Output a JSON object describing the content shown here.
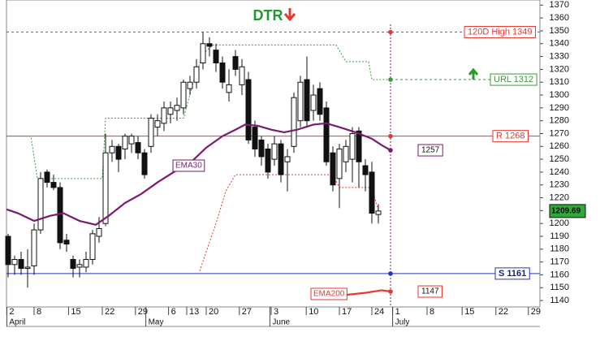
{
  "chart_data": {
    "type": "candlestick",
    "title": "DTR",
    "x": [
      0,
      1,
      2,
      3,
      4,
      5,
      6,
      7,
      8,
      9,
      10,
      11,
      12,
      13,
      14,
      15,
      16,
      17,
      18,
      19,
      20,
      21,
      22,
      23,
      24,
      25,
      26,
      27,
      28,
      29,
      30,
      31,
      32,
      33,
      34,
      35,
      36,
      37,
      38,
      39,
      40,
      41,
      42,
      43,
      44,
      45,
      46,
      47,
      48,
      49,
      50,
      51,
      52,
      53,
      54,
      55,
      56,
      57
    ],
    "open": [
      1190,
      1168,
      1172,
      1165,
      1167,
      1195,
      1240,
      1232,
      1228,
      1187,
      1172,
      1166,
      1166,
      1172,
      1190,
      1200,
      1255,
      1260,
      1258,
      1262,
      1263,
      1255,
      1260,
      1275,
      1278,
      1285,
      1288,
      1290,
      1305,
      1310,
      1325,
      1340,
      1335,
      1325,
      1302,
      1330,
      1308,
      1312,
      1275,
      1265,
      1258,
      1250,
      1262,
      1248,
      1260,
      1280,
      1312,
      1288,
      1305,
      1290,
      1255,
      1235,
      1248,
      1250,
      1272,
      1245,
      1240,
      1207
    ],
    "high": [
      1192,
      1175,
      1178,
      1180,
      1200,
      1240,
      1242,
      1238,
      1232,
      1192,
      1175,
      1172,
      1178,
      1195,
      1205,
      1270,
      1265,
      1262,
      1270,
      1270,
      1268,
      1258,
      1285,
      1285,
      1295,
      1295,
      1298,
      1312,
      1315,
      1328,
      1349,
      1345,
      1340,
      1330,
      1320,
      1335,
      1328,
      1318,
      1280,
      1268,
      1262,
      1268,
      1265,
      1258,
      1302,
      1315,
      1330,
      1308,
      1310,
      1295,
      1260,
      1262,
      1265,
      1275,
      1275,
      1250,
      1248,
      1215
    ],
    "low": [
      1158,
      1160,
      1160,
      1150,
      1160,
      1192,
      1228,
      1226,
      1180,
      1178,
      1158,
      1158,
      1162,
      1168,
      1185,
      1198,
      1248,
      1240,
      1250,
      1255,
      1250,
      1235,
      1255,
      1268,
      1272,
      1278,
      1280,
      1285,
      1300,
      1305,
      1320,
      1330,
      1318,
      1305,
      1295,
      1315,
      1300,
      1262,
      1252,
      1245,
      1235,
      1245,
      1232,
      1225,
      1255,
      1275,
      1275,
      1280,
      1280,
      1245,
      1225,
      1212,
      1240,
      1232,
      1228,
      1225,
      1200,
      1200
    ],
    "close": [
      1168,
      1172,
      1165,
      1166,
      1195,
      1235,
      1232,
      1228,
      1185,
      1184,
      1165,
      1168,
      1172,
      1192,
      1196,
      1255,
      1260,
      1250,
      1268,
      1268,
      1255,
      1238,
      1282,
      1280,
      1290,
      1290,
      1292,
      1310,
      1310,
      1322,
      1340,
      1338,
      1325,
      1310,
      1308,
      1320,
      1322,
      1265,
      1258,
      1252,
      1240,
      1262,
      1238,
      1252,
      1298,
      1310,
      1280,
      1300,
      1285,
      1248,
      1230,
      1258,
      1260,
      1270,
      1248,
      1238,
      1208,
      1209.69
    ],
    "last_price": 1209.69,
    "xlim": [
      -0.25,
      81.875
    ],
    "ylim": [
      1135,
      1374
    ],
    "yticks": [
      1140,
      1150,
      1160,
      1170,
      1180,
      1190,
      1200,
      1210,
      1220,
      1230,
      1240,
      1250,
      1260,
      1270,
      1280,
      1290,
      1300,
      1310,
      1320,
      1330,
      1340,
      1350,
      1360,
      1370
    ],
    "xticks": [
      {
        "value": -0.2,
        "label": "2"
      },
      {
        "value": 4,
        "label": "8"
      },
      {
        "value": 9.3,
        "label": "15"
      },
      {
        "value": 14.5,
        "label": "22"
      },
      {
        "value": 19.6,
        "label": "29"
      },
      {
        "value": 24.7,
        "label": "6"
      },
      {
        "value": 27.5,
        "label": "13"
      },
      {
        "value": 30.5,
        "label": "20"
      },
      {
        "value": 35.6,
        "label": "27"
      },
      {
        "value": 40.5,
        "label": "3"
      },
      {
        "value": 45.9,
        "label": "10"
      },
      {
        "value": 51,
        "label": "17"
      },
      {
        "value": 56,
        "label": "24"
      },
      {
        "value": 59.2,
        "label": "1"
      },
      {
        "value": 64.5,
        "label": "8"
      },
      {
        "value": 69.9,
        "label": "15"
      },
      {
        "value": 75.1,
        "label": "22"
      },
      {
        "value": 80.1,
        "label": "29"
      }
    ],
    "months": [
      {
        "value": -0.2,
        "label": "April"
      },
      {
        "value": 21.2,
        "label": "May"
      },
      {
        "value": 40.3,
        "label": "June"
      },
      {
        "value": 59.2,
        "label": "July"
      }
    ],
    "lines": [
      {
        "name": "EMA30",
        "color": "#7b1a6e",
        "x": [
          -0.25,
          1.5,
          4,
          6.5,
          8.5,
          11,
          13.5,
          15.5,
          18,
          20.5,
          23,
          25.5,
          28,
          30.5,
          33,
          35,
          36.5,
          38.5,
          40.5,
          42.5,
          44.5,
          47,
          49,
          51,
          53.5,
          56,
          57.5,
          58.9
        ],
        "values": [
          1211,
          1208,
          1202,
          1206,
          1208,
          1202,
          1199,
          1206,
          1216,
          1223,
          1232,
          1240,
          1247,
          1259,
          1268,
          1273,
          1277,
          1276,
          1273,
          1271,
          1273,
          1277,
          1278,
          1275,
          1271,
          1266,
          1261,
          1257
        ]
      },
      {
        "name": "EMA200",
        "color": "#e8372f",
        "x": [
          46.9,
          51.25,
          55,
          57.5,
          58.9
        ],
        "values": [
          1142,
          1144,
          1146,
          1148,
          1147
        ]
      }
    ],
    "stops": [
      {
        "color": "#3a9a3a",
        "x": [
          -0.25,
          3.5,
          4.5,
          14.5,
          15,
          27,
          28.5,
          30,
          31.5,
          50.5,
          52,
          55.5,
          56,
          58.9
        ],
        "values": [
          1268,
          1268,
          1235,
          1235,
          1282,
          1282,
          1310,
          1332,
          1339,
          1339,
          1326,
          1326,
          1312,
          1312
        ]
      },
      {
        "color": "#e8372f",
        "x": [
          29.5,
          30.5,
          32,
          33.5,
          35,
          50,
          51,
          56,
          57
        ],
        "values": [
          1163,
          1178,
          1200,
          1225,
          1238,
          1238,
          1228,
          1228,
          1210
        ]
      }
    ],
    "levels": [
      {
        "label": "120D High 1349",
        "value": 1349,
        "color": "#e8372f",
        "style": "dashed"
      },
      {
        "label": "URL 1312",
        "value": 1312,
        "color": "#3a9a3a",
        "style": "dashed"
      },
      {
        "label": "R 1268",
        "value": 1268,
        "color": "#e8372f",
        "style": "solid"
      },
      {
        "label": "S 1161",
        "value": 1161,
        "color": "#2233cc",
        "style": "solid"
      }
    ]
  }
}
